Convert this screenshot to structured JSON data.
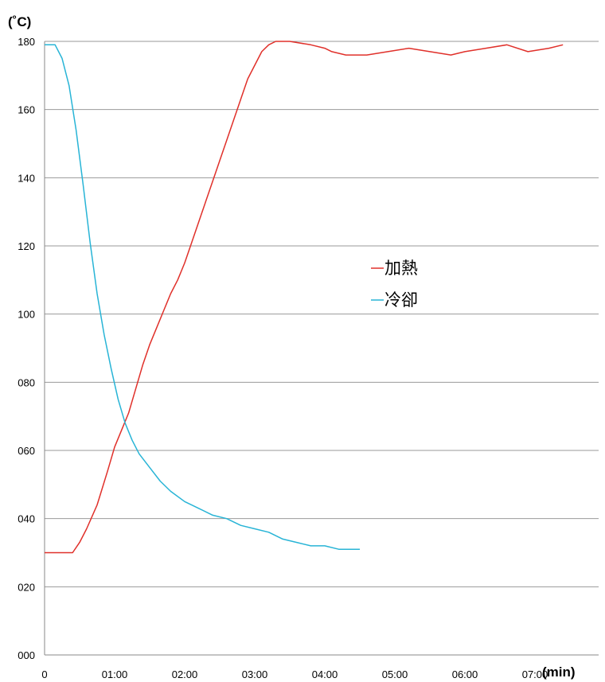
{
  "chart_data": {
    "type": "line",
    "title": "",
    "ylabel": "(˚C)",
    "xlabel": "(min)",
    "ylim": [
      0,
      180
    ],
    "xlim": [
      0,
      8
    ],
    "yticks": [
      {
        "v": 0,
        "label": "000"
      },
      {
        "v": 20,
        "label": "020"
      },
      {
        "v": 40,
        "label": "040"
      },
      {
        "v": 60,
        "label": "060"
      },
      {
        "v": 80,
        "label": "080"
      },
      {
        "v": 100,
        "label": "100"
      },
      {
        "v": 120,
        "label": "120"
      },
      {
        "v": 140,
        "label": "140"
      },
      {
        "v": 160,
        "label": "160"
      },
      {
        "v": 180,
        "label": "180"
      }
    ],
    "xticks": [
      {
        "v": 0,
        "label": "0"
      },
      {
        "v": 1,
        "label": "01:00"
      },
      {
        "v": 2,
        "label": "02:00"
      },
      {
        "v": 3,
        "label": "03:00"
      },
      {
        "v": 4,
        "label": "04:00"
      },
      {
        "v": 5,
        "label": "05:00"
      },
      {
        "v": 6,
        "label": "06:00"
      },
      {
        "v": 7,
        "label": "07:00"
      }
    ],
    "grid": true,
    "legend_position": "center-right",
    "series": [
      {
        "name": "加熱",
        "color": "#e0302a",
        "x": [
          0,
          0.4,
          0.5,
          0.6,
          0.75,
          0.9,
          1.0,
          1.1,
          1.2,
          1.3,
          1.4,
          1.5,
          1.6,
          1.7,
          1.8,
          1.9,
          2.0,
          2.1,
          2.2,
          2.3,
          2.4,
          2.5,
          2.6,
          2.7,
          2.8,
          2.9,
          3.0,
          3.1,
          3.2,
          3.3,
          3.5,
          3.8,
          4.0,
          4.1,
          4.3,
          4.6,
          4.9,
          5.2,
          5.5,
          5.8,
          6.0,
          6.3,
          6.6,
          6.9,
          7.2,
          7.4
        ],
        "y": [
          30,
          30,
          33,
          37,
          44,
          54,
          61,
          66,
          71,
          78,
          85,
          91,
          96,
          101,
          106,
          110,
          115,
          121,
          127,
          133,
          139,
          145,
          151,
          157,
          163,
          169,
          173,
          177,
          179,
          180,
          180,
          179,
          178,
          177,
          176,
          176,
          177,
          178,
          177,
          176,
          177,
          178,
          179,
          177,
          178,
          179
        ]
      },
      {
        "name": "冷卻",
        "color": "#28b4d6",
        "x": [
          0,
          0.15,
          0.25,
          0.35,
          0.45,
          0.55,
          0.65,
          0.75,
          0.85,
          0.95,
          1.05,
          1.15,
          1.25,
          1.35,
          1.5,
          1.65,
          1.8,
          2.0,
          2.2,
          2.4,
          2.6,
          2.8,
          3.0,
          3.2,
          3.4,
          3.6,
          3.8,
          4.0,
          4.2,
          4.5
        ],
        "y": [
          179,
          179,
          175,
          167,
          154,
          138,
          121,
          106,
          94,
          84,
          75,
          68,
          63,
          59,
          55,
          51,
          48,
          45,
          43,
          41,
          40,
          38,
          37,
          36,
          34,
          33,
          32,
          32,
          31,
          31
        ]
      }
    ]
  }
}
